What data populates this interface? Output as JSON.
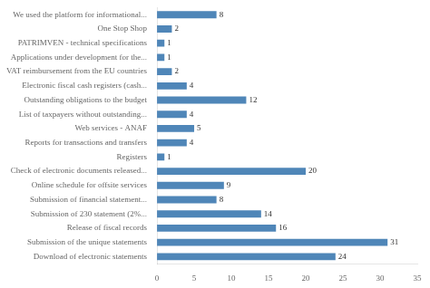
{
  "chart_data": {
    "type": "bar",
    "orientation": "horizontal",
    "categories": [
      "We used the platform for informational...",
      "One Stop Shop",
      "PATRIMVEN - technical specifications",
      "Applications under development for the...",
      "VAT reimbursement from the EU countries",
      "Electronic fiscal cash registers (cash...",
      "Outstanding obligations to the budget",
      "List of taxpayers without outstanding...",
      "Web services - ANAF",
      "Reports for transactions and transfers",
      "Registers",
      "Check of electronic documents released...",
      "Online schedule for offsite services",
      "Submission of financial statement...",
      "Submission of 230 statement (2%...",
      "Release of fiscal records",
      "Submission of the unique statements",
      "Download of electronic statements"
    ],
    "values": [
      8,
      2,
      1,
      1,
      2,
      4,
      12,
      4,
      5,
      4,
      1,
      20,
      9,
      8,
      14,
      16,
      31,
      24
    ],
    "color": "#4f86b8",
    "xlim": [
      0,
      35
    ],
    "xticks": [
      0,
      5,
      10,
      15,
      20,
      25,
      30,
      35
    ],
    "grid": false,
    "data_labels": true
  }
}
